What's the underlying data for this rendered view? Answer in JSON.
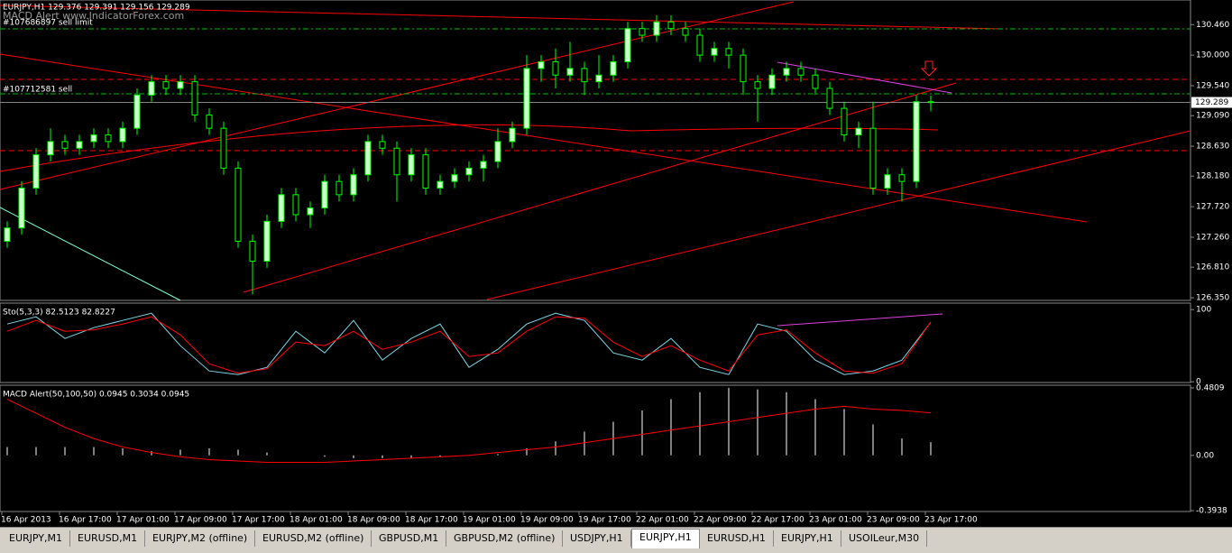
{
  "header": {
    "symbol_line": "EURJPY,H1  129.376 129.391 129.156 129.289",
    "watermark": "MACD Alert  www.IndicatorForex.com",
    "order_1": "#107686897 sell limit",
    "order_2": "#107712581 sell"
  },
  "price_panel": {
    "ylim": [
      126.31,
      130.83
    ],
    "yticks": [
      {
        "value": 130.46,
        "label": "130.460"
      },
      {
        "value": 130.0,
        "label": "130.000"
      },
      {
        "value": 129.54,
        "label": "129.540"
      },
      {
        "value": 129.09,
        "label": "129.090"
      },
      {
        "value": 128.63,
        "label": "128.630"
      },
      {
        "value": 128.18,
        "label": "128.180"
      },
      {
        "value": 127.72,
        "label": "127.720"
      },
      {
        "value": 127.26,
        "label": "127.260"
      },
      {
        "value": 126.81,
        "label": "126.810"
      },
      {
        "value": 126.35,
        "label": "126.350"
      }
    ],
    "current": {
      "value": 129.289,
      "label": "129.289"
    },
    "bull_color": "#ccffcc",
    "bear_color": "#000000",
    "wick_color": "#00ff00",
    "candles": [
      [
        127.2,
        127.5,
        127.1,
        127.4
      ],
      [
        127.4,
        128.1,
        127.3,
        128.0
      ],
      [
        128.0,
        128.6,
        127.9,
        128.5
      ],
      [
        128.5,
        128.9,
        128.4,
        128.7
      ],
      [
        128.7,
        128.8,
        128.5,
        128.6
      ],
      [
        128.6,
        128.8,
        128.5,
        128.7
      ],
      [
        128.7,
        128.9,
        128.6,
        128.8
      ],
      [
        128.8,
        128.9,
        128.6,
        128.7
      ],
      [
        128.7,
        129.0,
        128.6,
        128.9
      ],
      [
        128.9,
        129.5,
        128.8,
        129.4
      ],
      [
        129.4,
        129.7,
        129.3,
        129.6
      ],
      [
        129.6,
        129.7,
        129.4,
        129.5
      ],
      [
        129.5,
        129.7,
        129.4,
        129.6
      ],
      [
        129.6,
        129.7,
        129.0,
        129.1
      ],
      [
        129.1,
        129.2,
        128.8,
        128.9
      ],
      [
        128.9,
        129.0,
        128.2,
        128.3
      ],
      [
        128.3,
        128.4,
        127.1,
        127.2
      ],
      [
        127.2,
        127.3,
        126.4,
        126.9
      ],
      [
        126.9,
        127.6,
        126.8,
        127.5
      ],
      [
        127.5,
        128.0,
        127.4,
        127.9
      ],
      [
        127.9,
        128.0,
        127.5,
        127.6
      ],
      [
        127.6,
        127.8,
        127.4,
        127.7
      ],
      [
        127.7,
        128.2,
        127.6,
        128.1
      ],
      [
        128.1,
        128.2,
        127.8,
        127.9
      ],
      [
        127.9,
        128.3,
        127.8,
        128.2
      ],
      [
        128.2,
        128.8,
        128.1,
        128.7
      ],
      [
        128.7,
        128.8,
        128.5,
        128.6
      ],
      [
        128.6,
        128.7,
        127.8,
        128.2
      ],
      [
        128.2,
        128.6,
        128.1,
        128.5
      ],
      [
        128.5,
        128.6,
        127.9,
        128.0
      ],
      [
        128.0,
        128.2,
        127.9,
        128.1
      ],
      [
        128.1,
        128.3,
        128.0,
        128.2
      ],
      [
        128.2,
        128.4,
        128.1,
        128.3
      ],
      [
        128.3,
        128.5,
        128.1,
        128.4
      ],
      [
        128.4,
        128.9,
        128.3,
        128.7
      ],
      [
        128.7,
        129.0,
        128.6,
        128.9
      ],
      [
        128.9,
        130.0,
        128.8,
        129.8
      ],
      [
        129.8,
        130.0,
        129.6,
        129.9
      ],
      [
        129.9,
        130.1,
        129.5,
        129.7
      ],
      [
        129.7,
        130.2,
        129.6,
        129.8
      ],
      [
        129.8,
        129.9,
        129.4,
        129.6
      ],
      [
        129.6,
        130.0,
        129.5,
        129.7
      ],
      [
        129.7,
        130.0,
        129.6,
        129.9
      ],
      [
        129.9,
        130.5,
        129.8,
        130.4
      ],
      [
        130.4,
        130.5,
        130.2,
        130.3
      ],
      [
        130.3,
        130.6,
        130.2,
        130.5
      ],
      [
        130.5,
        130.6,
        130.3,
        130.4
      ],
      [
        130.4,
        130.5,
        130.2,
        130.3
      ],
      [
        130.3,
        130.4,
        129.9,
        130.0
      ],
      [
        130.0,
        130.2,
        129.9,
        130.1
      ],
      [
        130.1,
        130.2,
        129.8,
        130.0
      ],
      [
        130.0,
        130.1,
        129.4,
        129.6
      ],
      [
        129.6,
        129.7,
        129.0,
        129.5
      ],
      [
        129.5,
        129.8,
        129.4,
        129.7
      ],
      [
        129.7,
        129.9,
        129.6,
        129.8
      ],
      [
        129.8,
        129.9,
        129.6,
        129.7
      ],
      [
        129.7,
        129.8,
        129.4,
        129.5
      ],
      [
        129.5,
        129.6,
        129.1,
        129.2
      ],
      [
        129.2,
        129.3,
        128.7,
        128.8
      ],
      [
        128.8,
        129.0,
        128.6,
        128.9
      ],
      [
        128.9,
        129.3,
        127.9,
        128.0
      ],
      [
        128.0,
        128.3,
        127.9,
        128.2
      ],
      [
        128.2,
        128.3,
        127.8,
        128.1
      ],
      [
        128.1,
        129.4,
        128.0,
        129.3
      ],
      [
        129.3,
        129.391,
        129.156,
        129.289
      ]
    ]
  },
  "stoch_panel": {
    "label": "Sto(5,3,3) 82.5123 82.8227",
    "ylim": [
      -1,
      109
    ],
    "yticks": [
      100,
      0
    ],
    "series": [
      {
        "color": "#7fd7e6",
        "values": [
          80,
          90,
          60,
          75,
          85,
          95,
          50,
          15,
          10,
          20,
          70,
          40,
          85,
          30,
          60,
          80,
          20,
          45,
          80,
          95,
          85,
          40,
          30,
          60,
          20,
          10,
          80,
          70,
          30,
          10,
          15,
          30,
          82.5123
        ]
      },
      {
        "color": "#ff0000",
        "values": [
          70,
          85,
          70,
          72,
          80,
          90,
          65,
          25,
          12,
          18,
          55,
          50,
          70,
          45,
          55,
          70,
          35,
          40,
          70,
          90,
          88,
          55,
          35,
          50,
          30,
          15,
          65,
          72,
          40,
          15,
          12,
          25,
          82.8227
        ]
      }
    ]
  },
  "macd_panel": {
    "label": "MACD Alert(50,100,50) 0.0945 0.3034 0.0945",
    "ylim": [
      -0.4,
      0.5
    ],
    "yticks": [
      0.4809,
      {
        "value": 0,
        "label": "0.00"
      },
      -0.3938
    ],
    "histogram_color": "#ffffff",
    "signal_color": "#ff0000",
    "histogram": [
      0.06,
      0.06,
      0.06,
      0.06,
      0.05,
      0.03,
      0.04,
      0.05,
      0.04,
      0.02,
      0.0,
      -0.01,
      -0.02,
      -0.02,
      -0.02,
      -0.01,
      0.0,
      0.01,
      0.05,
      0.1,
      0.17,
      0.24,
      0.32,
      0.4,
      0.45,
      0.48,
      0.47,
      0.45,
      0.4,
      0.33,
      0.22,
      0.12,
      0.0945
    ],
    "signal": [
      0.4,
      0.3,
      0.2,
      0.12,
      0.06,
      0.02,
      -0.01,
      -0.03,
      -0.04,
      -0.05,
      -0.05,
      -0.05,
      -0.04,
      -0.03,
      -0.02,
      -0.01,
      0.0,
      0.02,
      0.04,
      0.06,
      0.09,
      0.12,
      0.15,
      0.18,
      0.21,
      0.24,
      0.27,
      0.3,
      0.33,
      0.35,
      0.33,
      0.32,
      0.3034
    ]
  },
  "time_axis": [
    "16 Apr 2013",
    "16 Apr 17:00",
    "17 Apr 01:00",
    "17 Apr 09:00",
    "17 Apr 17:00",
    "18 Apr 01:00",
    "18 Apr 09:00",
    "18 Apr 17:00",
    "19 Apr 01:00",
    "19 Apr 09:00",
    "19 Apr 17:00",
    "22 Apr 01:00",
    "22 Apr 09:00",
    "22 Apr 17:00",
    "23 Apr 01:00",
    "23 Apr 09:00",
    "23 Apr 17:00"
  ],
  "tabs": [
    "EURJPY,M1",
    "EURUSD,M1",
    "EURJPY,M2 (offline)",
    "EURUSD,M2 (offline)",
    "GBPUSD,M1",
    "GBPUSD,M2 (offline)",
    "USDJPY,H1",
    "EURJPY,H1",
    "EURUSD,H1",
    "EURJPY,H1",
    "USOILeur,M30"
  ],
  "selected_tab": "EURJPY,H1"
}
